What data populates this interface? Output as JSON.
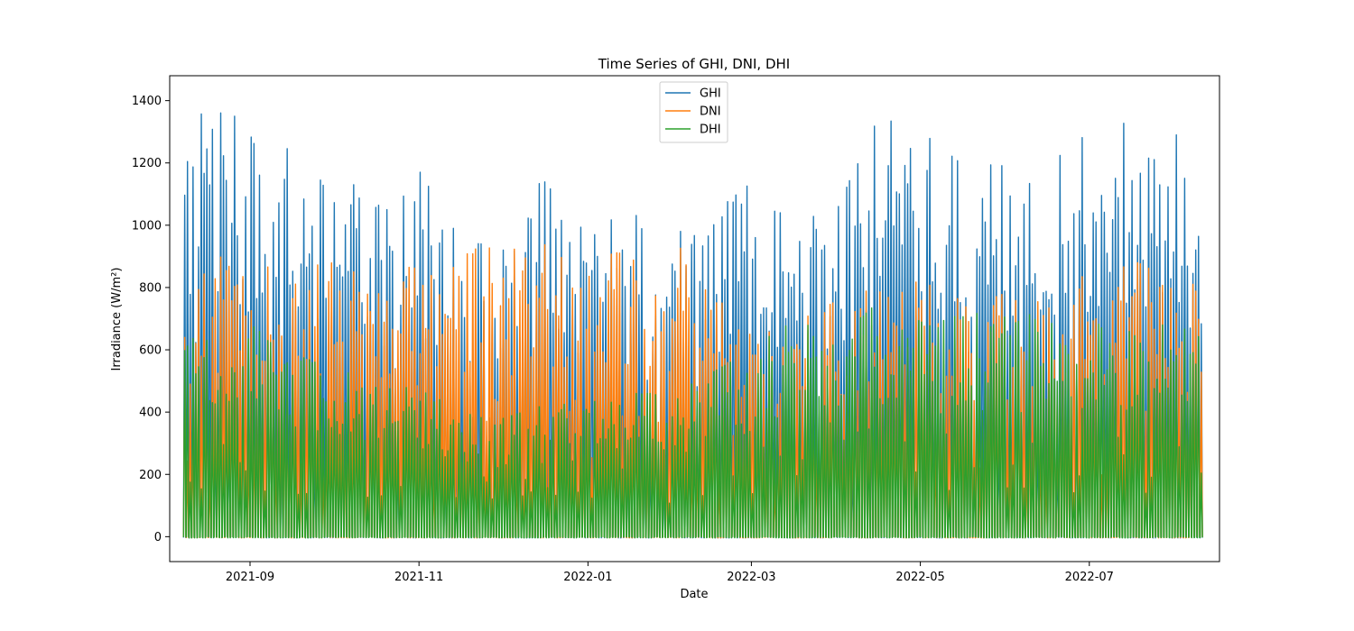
{
  "chart_data": {
    "type": "line",
    "title": "Time Series of GHI, DNI, DHI",
    "xlabel": "Date",
    "ylabel": "Irradiance (W/m²)",
    "x_range": [
      "2021-08-03",
      "2022-08-17"
    ],
    "data_x_range": [
      "2021-08-08",
      "2022-08-10"
    ],
    "ylim": [
      -80,
      1480
    ],
    "y_ticks": [
      0,
      200,
      400,
      600,
      800,
      1000,
      1200,
      1400
    ],
    "x_ticks": [
      {
        "date": "2021-09-01",
        "label": "2021-09"
      },
      {
        "date": "2021-11-01",
        "label": "2021-11"
      },
      {
        "date": "2022-01-01",
        "label": "2022-01"
      },
      {
        "date": "2022-03-01",
        "label": "2022-03"
      },
      {
        "date": "2022-05-01",
        "label": "2022-05"
      },
      {
        "date": "2022-07-01",
        "label": "2022-07"
      }
    ],
    "grid": false,
    "legend_position": "upper center",
    "series": [
      {
        "name": "GHI",
        "color": "#1f77b4",
        "daily_peaks": [
          {
            "date": "2021-08-08",
            "value": 1350
          },
          {
            "date": "2021-08-20",
            "value": 1410
          },
          {
            "date": "2021-09-01",
            "value": 1290
          },
          {
            "date": "2021-09-15",
            "value": 1280
          },
          {
            "date": "2021-10-01",
            "value": 1210
          },
          {
            "date": "2021-10-15",
            "value": 1050
          },
          {
            "date": "2021-11-01",
            "value": 1170
          },
          {
            "date": "2021-11-15",
            "value": 960
          },
          {
            "date": "2021-12-01",
            "value": 920
          },
          {
            "date": "2021-12-15",
            "value": 1150
          },
          {
            "date": "2022-01-01",
            "value": 960
          },
          {
            "date": "2022-01-15",
            "value": 1060
          },
          {
            "date": "2022-02-01",
            "value": 970
          },
          {
            "date": "2022-02-15",
            "value": 1040
          },
          {
            "date": "2022-03-01",
            "value": 1140
          },
          {
            "date": "2022-03-15",
            "value": 1000
          },
          {
            "date": "2022-04-01",
            "value": 1060
          },
          {
            "date": "2022-04-15",
            "value": 1350
          },
          {
            "date": "2022-05-01",
            "value": 1300
          },
          {
            "date": "2022-05-15",
            "value": 1200
          },
          {
            "date": "2022-06-01",
            "value": 1190
          },
          {
            "date": "2022-06-15",
            "value": 1210
          },
          {
            "date": "2022-07-01",
            "value": 1310
          },
          {
            "date": "2022-07-15",
            "value": 1330
          },
          {
            "date": "2022-08-01",
            "value": 1290
          },
          {
            "date": "2022-08-10",
            "value": 1150
          }
        ]
      },
      {
        "name": "DNI",
        "color": "#ff7f0e",
        "daily_peaks": [
          {
            "date": "2021-08-08",
            "value": 830
          },
          {
            "date": "2021-08-20",
            "value": 900
          },
          {
            "date": "2021-09-01",
            "value": 870
          },
          {
            "date": "2021-09-15",
            "value": 860
          },
          {
            "date": "2021-10-01",
            "value": 880
          },
          {
            "date": "2021-10-15",
            "value": 880
          },
          {
            "date": "2021-11-01",
            "value": 860
          },
          {
            "date": "2021-11-15",
            "value": 920
          },
          {
            "date": "2021-12-01",
            "value": 930
          },
          {
            "date": "2021-12-15",
            "value": 940
          },
          {
            "date": "2022-01-01",
            "value": 890
          },
          {
            "date": "2022-01-15",
            "value": 920
          },
          {
            "date": "2022-02-01",
            "value": 950
          },
          {
            "date": "2022-02-15",
            "value": 780
          },
          {
            "date": "2022-03-01",
            "value": 640
          },
          {
            "date": "2022-03-15",
            "value": 680
          },
          {
            "date": "2022-04-01",
            "value": 760
          },
          {
            "date": "2022-04-15",
            "value": 800
          },
          {
            "date": "2022-05-01",
            "value": 820
          },
          {
            "date": "2022-05-15",
            "value": 760
          },
          {
            "date": "2022-06-01",
            "value": 780
          },
          {
            "date": "2022-06-15",
            "value": 790
          },
          {
            "date": "2022-07-01",
            "value": 850
          },
          {
            "date": "2022-07-15",
            "value": 890
          },
          {
            "date": "2022-08-01",
            "value": 830
          },
          {
            "date": "2022-08-10",
            "value": 800
          }
        ]
      },
      {
        "name": "DHI",
        "color": "#2ca02c",
        "daily_peaks": [
          {
            "date": "2021-08-08",
            "value": 700
          },
          {
            "date": "2021-08-20",
            "value": 640
          },
          {
            "date": "2021-09-01",
            "value": 680
          },
          {
            "date": "2021-09-15",
            "value": 590
          },
          {
            "date": "2021-10-01",
            "value": 540
          },
          {
            "date": "2021-10-15",
            "value": 500
          },
          {
            "date": "2021-11-01",
            "value": 470
          },
          {
            "date": "2021-11-15",
            "value": 410
          },
          {
            "date": "2021-12-01",
            "value": 380
          },
          {
            "date": "2021-12-15",
            "value": 420
          },
          {
            "date": "2022-01-01",
            "value": 430
          },
          {
            "date": "2022-01-15",
            "value": 460
          },
          {
            "date": "2022-02-01",
            "value": 460
          },
          {
            "date": "2022-02-15",
            "value": 530
          },
          {
            "date": "2022-03-01",
            "value": 600
          },
          {
            "date": "2022-03-15",
            "value": 700
          },
          {
            "date": "2022-04-01",
            "value": 640
          },
          {
            "date": "2022-04-15",
            "value": 750
          },
          {
            "date": "2022-05-01",
            "value": 690
          },
          {
            "date": "2022-05-15",
            "value": 720
          },
          {
            "date": "2022-06-01",
            "value": 730
          },
          {
            "date": "2022-06-15",
            "value": 700
          },
          {
            "date": "2022-07-01",
            "value": 680
          },
          {
            "date": "2022-07-15",
            "value": 690
          },
          {
            "date": "2022-08-01",
            "value": 680
          },
          {
            "date": "2022-08-10",
            "value": 640
          }
        ]
      }
    ]
  }
}
